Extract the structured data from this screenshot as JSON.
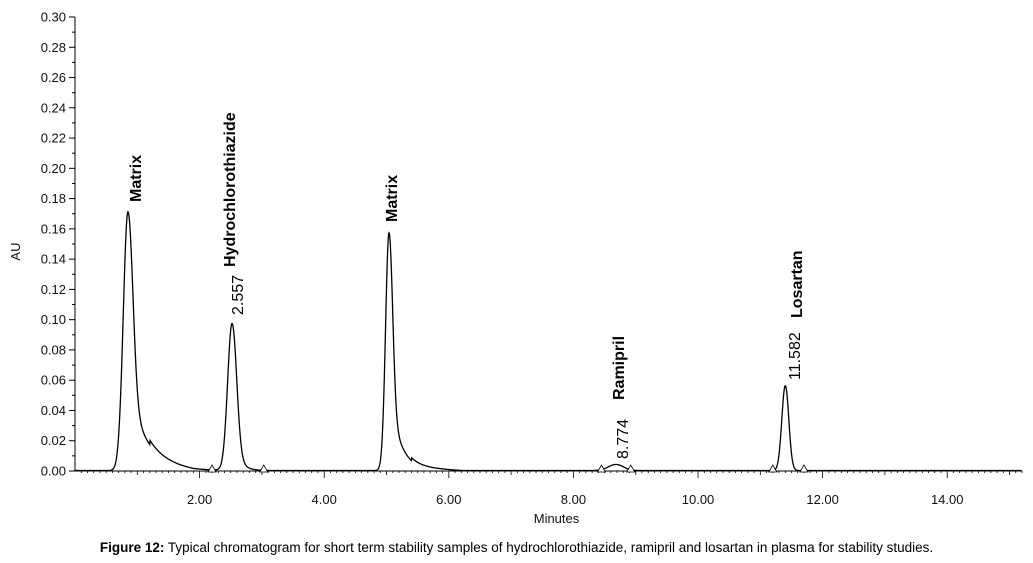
{
  "chart_data": {
    "type": "line",
    "xlabel": "Minutes",
    "ylabel": "AU",
    "xlim": [
      0,
      15.2
    ],
    "ylim": [
      0,
      0.3
    ],
    "x_ticks": [
      2.0,
      4.0,
      6.0,
      8.0,
      10.0,
      12.0,
      14.0
    ],
    "x_tick_labels": [
      "2.00",
      "4.00",
      "6.00",
      "8.00",
      "10.00",
      "12.00",
      "14.00"
    ],
    "y_ticks": [
      0.0,
      0.02,
      0.04,
      0.06,
      0.08,
      0.1,
      0.12,
      0.14,
      0.16,
      0.18,
      0.2,
      0.22,
      0.24,
      0.26,
      0.28,
      0.3
    ],
    "y_tick_labels": [
      "0.00",
      "0.02",
      "0.04",
      "0.06",
      "0.08",
      "0.10",
      "0.12",
      "0.14",
      "0.16",
      "0.18",
      "0.20",
      "0.22",
      "0.24",
      "0.26",
      "0.28",
      "0.30"
    ],
    "grid": false,
    "line_color": "#000000",
    "peaks": [
      {
        "name": "Matrix",
        "rt": 0.85,
        "height": 0.171,
        "rt_label": ""
      },
      {
        "name": "Hydrochlorothiazide",
        "rt": 2.557,
        "height": 0.097,
        "rt_label": "2.557"
      },
      {
        "name": "Matrix",
        "rt": 5.05,
        "height": 0.157,
        "rt_label": ""
      },
      {
        "name": "Ramipril",
        "rt": 8.774,
        "height": 0.004,
        "rt_label": "8.774"
      },
      {
        "name": "Losartan",
        "rt": 11.582,
        "height": 0.056,
        "rt_label": "11.582"
      }
    ],
    "baseline_markers": [
      2.2,
      3.03,
      8.45,
      8.92,
      11.2,
      11.7
    ]
  },
  "caption": {
    "label": "Figure 12:",
    "text": " Typical chromatogram for short term stability samples of hydrochlorothiazide, ramipril and losartan in plasma for stability studies."
  }
}
